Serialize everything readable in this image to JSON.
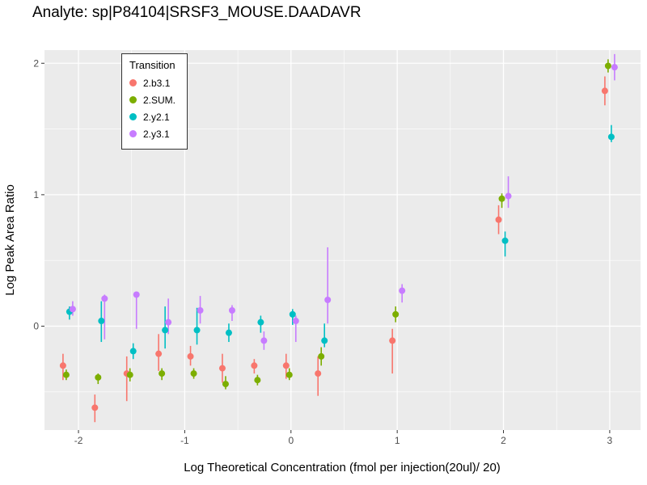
{
  "chart_data": {
    "type": "scatter",
    "title": "Analyte: sp|P84104|SRSF3_MOUSE.DAADAVR",
    "xlabel": "Log Theoretical Concentration (fmol per injection(20ul)/ 20)",
    "ylabel": "Log Peak Area Ratio",
    "legend_title": "Transition",
    "legend_position": "top-left-inside",
    "panel_bg": "#EBEBEB",
    "grid_color": "#FFFFFF",
    "tick_color": "#333333",
    "xlim": [
      -2.32,
      3.29
    ],
    "ylim": [
      -0.79,
      2.1
    ],
    "x_ticks": [
      -2,
      -1,
      0,
      1,
      2,
      3
    ],
    "y_ticks": [
      0,
      1,
      2
    ],
    "x_minor_ticks": [
      -1.5,
      -0.5,
      0.5,
      1.5,
      2.5
    ],
    "y_minor_ticks": [
      -0.5,
      0.5,
      1.5
    ],
    "x": [
      -2.1,
      -1.8,
      -1.5,
      -1.2,
      -0.9,
      -0.6,
      -0.3,
      0,
      0.3,
      1,
      2,
      3
    ],
    "series": [
      {
        "name": "2.b3.1",
        "color": "#F8766D",
        "y": [
          -0.3,
          -0.62,
          -0.36,
          -0.21,
          -0.23,
          -0.32,
          -0.3,
          -0.3,
          -0.36,
          -0.11,
          0.81,
          1.79
        ],
        "ylow": [
          -0.41,
          -0.73,
          -0.57,
          -0.34,
          -0.3,
          -0.43,
          -0.36,
          -0.4,
          -0.53,
          -0.36,
          0.7,
          1.68
        ],
        "yhigh": [
          -0.21,
          -0.52,
          -0.23,
          -0.06,
          -0.15,
          -0.21,
          -0.25,
          -0.21,
          -0.23,
          -0.02,
          0.92,
          1.9
        ]
      },
      {
        "name": "2.SUM.",
        "color": "#7CAE00",
        "y": [
          -0.37,
          -0.39,
          -0.37,
          -0.36,
          -0.36,
          -0.44,
          -0.41,
          -0.37,
          -0.23,
          0.09,
          0.97,
          1.98
        ],
        "ylow": [
          -0.41,
          -0.44,
          -0.42,
          -0.41,
          -0.4,
          -0.48,
          -0.45,
          -0.41,
          -0.3,
          0.03,
          0.9,
          1.93
        ],
        "yhigh": [
          -0.33,
          -0.36,
          -0.32,
          -0.32,
          -0.32,
          -0.38,
          -0.37,
          -0.32,
          -0.16,
          0.15,
          1.01,
          2.03
        ]
      },
      {
        "name": "2.y2.1",
        "color": "#00BFC4",
        "y": [
          0.11,
          0.04,
          -0.19,
          -0.03,
          -0.03,
          -0.05,
          0.03,
          0.09,
          -0.11,
          null,
          0.65,
          1.44
        ],
        "ylow": [
          0.05,
          -0.12,
          -0.25,
          -0.17,
          -0.14,
          -0.12,
          -0.05,
          0.01,
          -0.16,
          null,
          0.53,
          1.4
        ],
        "yhigh": [
          0.15,
          0.19,
          -0.13,
          0.15,
          0.14,
          0.02,
          0.08,
          0.13,
          0.02,
          null,
          0.72,
          1.53
        ]
      },
      {
        "name": "2.y3.1",
        "color": "#C77CFF",
        "y": [
          0.13,
          0.21,
          0.24,
          0.03,
          0.12,
          0.12,
          -0.11,
          0.04,
          0.2,
          0.27,
          0.99,
          1.97
        ],
        "ylow": [
          0.08,
          -0.1,
          -0.02,
          -0.06,
          0.02,
          0.04,
          -0.18,
          -0.12,
          0.02,
          0.18,
          0.9,
          1.87
        ],
        "yhigh": [
          0.19,
          0.24,
          0.26,
          0.21,
          0.23,
          0.16,
          -0.04,
          0.08,
          0.6,
          0.32,
          1.14,
          2.07
        ]
      }
    ]
  }
}
